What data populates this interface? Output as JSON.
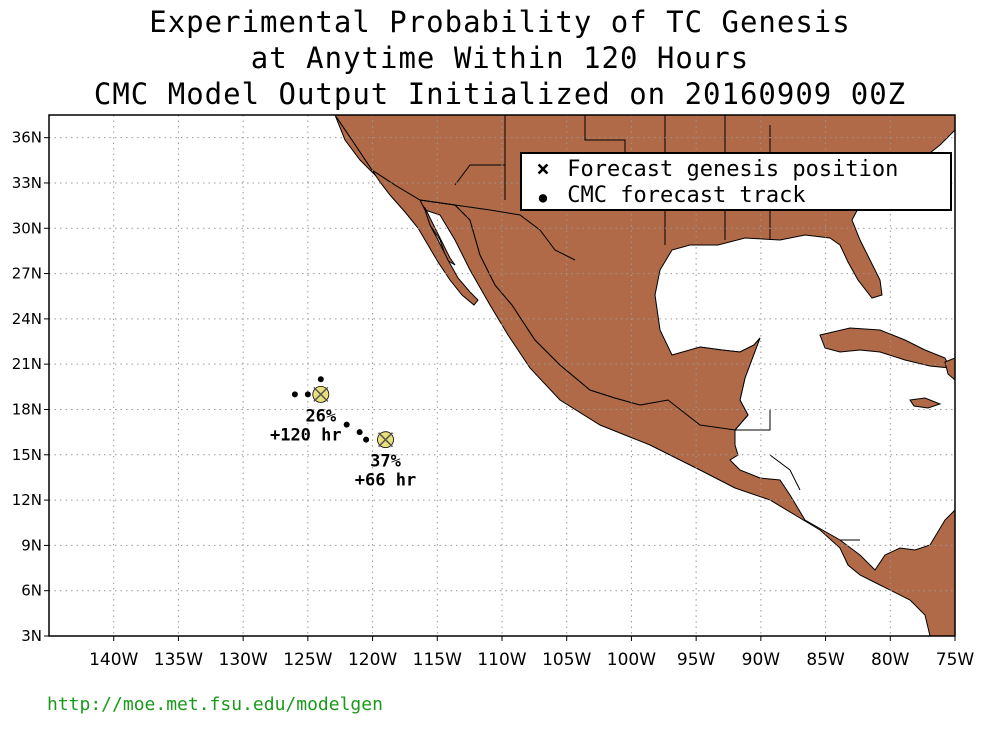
{
  "title": {
    "line1": "Experimental Probability of TC Genesis",
    "line2": "at Anytime Within 120 Hours",
    "line3": "CMC Model Output Initialized on 20160909 00Z"
  },
  "legend": {
    "genesis_label": "Forecast genesis position",
    "track_label": "CMC forecast track",
    "genesis_symbol": "×",
    "track_symbol": "●"
  },
  "map": {
    "lon_range": [
      -145,
      -75
    ],
    "lat_range": [
      3,
      37.5
    ],
    "y_ticks": [
      "36N",
      "33N",
      "30N",
      "27N",
      "24N",
      "21N",
      "18N",
      "15N",
      "12N",
      "9N",
      "6N",
      "3N"
    ],
    "x_ticks": [
      "140W",
      "135W",
      "130W",
      "125W",
      "120W",
      "115W",
      "110W",
      "105W",
      "100W",
      "95W",
      "90W",
      "85W",
      "80W",
      "75W"
    ],
    "land_color": "#b06a47",
    "ocean_color": "#ffffff",
    "marker_color": "#e8e07a",
    "grid": "dotted"
  },
  "systems": [
    {
      "probability": "26%",
      "lead_time": "+120 hr",
      "genesis": {
        "lon": -124.0,
        "lat": 19.0
      },
      "track": [
        {
          "lon": -124.0,
          "lat": 20.0
        },
        {
          "lon": -126.0,
          "lat": 19.0
        },
        {
          "lon": -125.0,
          "lat": 19.0
        },
        {
          "lon": -122.0,
          "lat": 17.0
        },
        {
          "lon": -121.0,
          "lat": 16.5
        },
        {
          "lon": -120.5,
          "lat": 16.0
        }
      ]
    },
    {
      "probability": "37%",
      "lead_time": "+66 hr",
      "genesis": {
        "lon": -119.0,
        "lat": 16.0
      },
      "track": []
    }
  ],
  "footer": {
    "url": "http://moe.met.fsu.edu/modelgen",
    "url_color": "#1a9a1a"
  }
}
